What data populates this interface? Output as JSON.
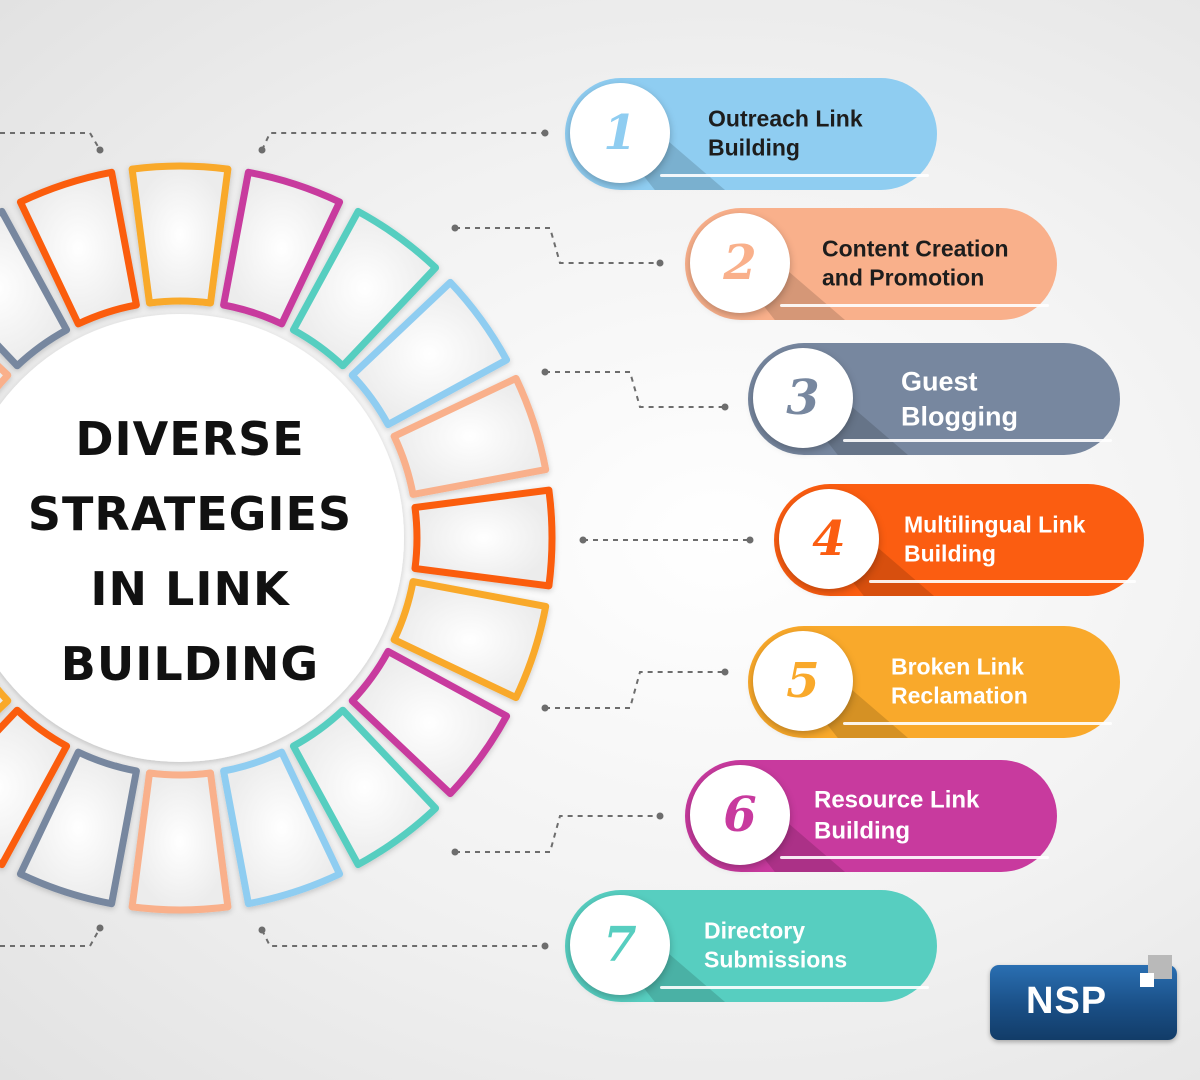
{
  "title_lines": [
    "DIVERSE",
    "STRATEGIES",
    "IN LINK",
    "BUILDING"
  ],
  "strategies": [
    {
      "number": "1",
      "label_lines": [
        "Outreach Link",
        "Building"
      ],
      "color": "#8fcdf1",
      "text_color": "#1d1d1d"
    },
    {
      "number": "2",
      "label_lines": [
        "Content Creation",
        "and Promotion"
      ],
      "color": "#f9b08b",
      "text_color": "#1d1d1d"
    },
    {
      "number": "3",
      "label_lines": [
        "Guest",
        "Blogging"
      ],
      "color": "#77879f",
      "text_color": "#ffffff"
    },
    {
      "number": "4",
      "label_lines": [
        "Multilingual Link",
        "Building"
      ],
      "color": "#fb5d11",
      "text_color": "#ffffff"
    },
    {
      "number": "5",
      "label_lines": [
        "Broken Link",
        "Reclamation"
      ],
      "color": "#f9a92b",
      "text_color": "#ffffff"
    },
    {
      "number": "6",
      "label_lines": [
        "Resource Link",
        "Building"
      ],
      "color": "#c83a9e",
      "text_color": "#ffffff"
    },
    {
      "number": "7",
      "label_lines": [
        "Directory",
        "Submissions"
      ],
      "color": "#57cec0",
      "text_color": "#ffffff"
    }
  ],
  "ring_colors": [
    "#8fcdf1",
    "#f9b08b",
    "#77879f",
    "#fb5d11",
    "#f9a92b",
    "#c83a9e",
    "#57cec0"
  ],
  "logo": {
    "text": "NSP",
    "color": "#1f5d99"
  }
}
